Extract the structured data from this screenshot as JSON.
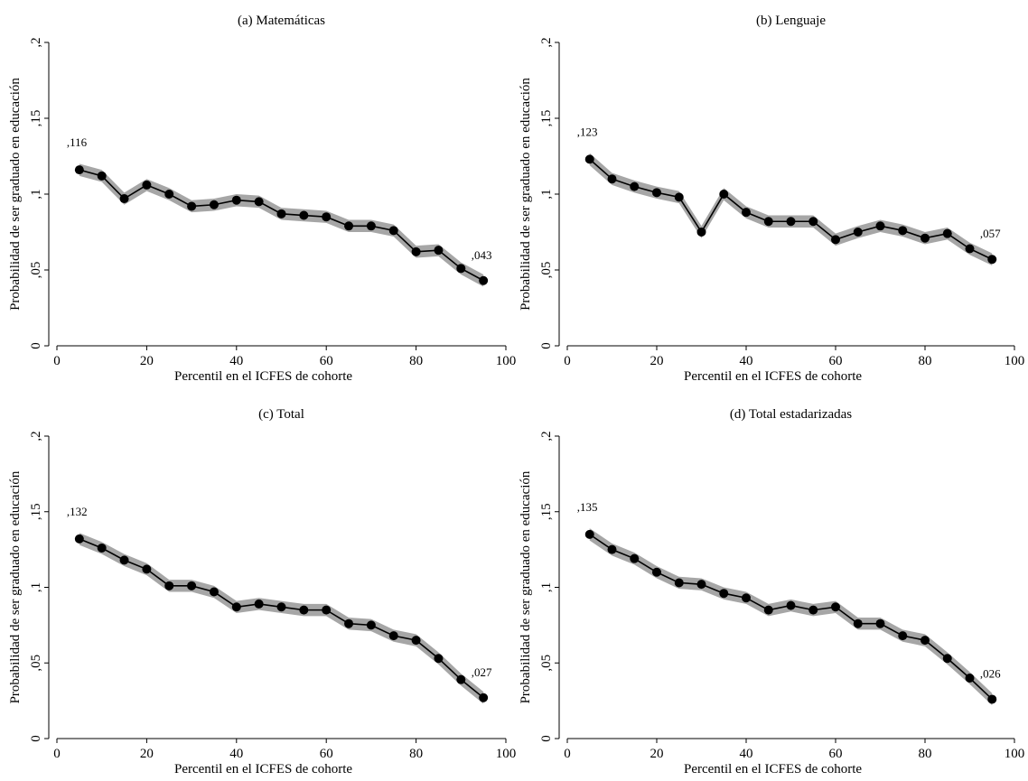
{
  "figure": {
    "panels": [
      {
        "title": "(a) Matemáticas"
      },
      {
        "title": "(b) Lenguaje"
      },
      {
        "title": "(c) Total"
      },
      {
        "title": "(d) Total estadarizadas"
      }
    ]
  },
  "colors": {
    "line": "#000000",
    "marker": "#000000",
    "ci_band": "#a6a6a6",
    "axis": "#000000"
  },
  "chart_data": [
    {
      "type": "line",
      "title": "(a) Matemáticas",
      "xlabel": "Percentil en el ICFES de cohorte",
      "ylabel": "Probabilidad de ser graduado en educación",
      "xlim": [
        0,
        100
      ],
      "ylim": [
        0,
        0.2
      ],
      "xticks": [
        0,
        20,
        40,
        60,
        80,
        100
      ],
      "xtick_labels": [
        "0",
        "20",
        "40",
        "60",
        "80",
        "100"
      ],
      "yticks": [
        0,
        0.05,
        0.1,
        0.15,
        0.2
      ],
      "ytick_labels": [
        "0",
        ",05",
        ",1",
        ",15",
        ",2"
      ],
      "grid": false,
      "legend": "none",
      "x": [
        5,
        10,
        15,
        20,
        25,
        30,
        35,
        40,
        45,
        50,
        55,
        60,
        65,
        70,
        75,
        80,
        85,
        90,
        95
      ],
      "y": [
        0.116,
        0.112,
        0.097,
        0.106,
        0.1,
        0.092,
        0.093,
        0.096,
        0.095,
        0.087,
        0.086,
        0.085,
        0.079,
        0.079,
        0.076,
        0.062,
        0.063,
        0.051,
        0.043
      ],
      "ci_halfwidth": 0.004,
      "annotations": [
        {
          "x": 5,
          "y": 0.116,
          "text": ",116",
          "pos": "left"
        },
        {
          "x": 95,
          "y": 0.043,
          "text": ",043",
          "pos": "above"
        }
      ]
    },
    {
      "type": "line",
      "title": "(b) Lenguaje",
      "xlabel": "Percentil en el ICFES de cohorte",
      "ylabel": "Probabilidad de ser graduado en educación",
      "xlim": [
        0,
        100
      ],
      "ylim": [
        0,
        0.2
      ],
      "xticks": [
        0,
        20,
        40,
        60,
        80,
        100
      ],
      "xtick_labels": [
        "0",
        "20",
        "40",
        "60",
        "80",
        "100"
      ],
      "yticks": [
        0,
        0.05,
        0.1,
        0.15,
        0.2
      ],
      "ytick_labels": [
        "0",
        ",05",
        ",1",
        ",15",
        ",2"
      ],
      "grid": false,
      "legend": "none",
      "x": [
        5,
        10,
        15,
        20,
        25,
        30,
        35,
        40,
        45,
        50,
        55,
        60,
        65,
        70,
        75,
        80,
        85,
        90,
        95
      ],
      "y": [
        0.123,
        0.11,
        0.105,
        0.101,
        0.098,
        0.075,
        0.1,
        0.088,
        0.082,
        0.082,
        0.082,
        0.07,
        0.075,
        0.079,
        0.076,
        0.071,
        0.074,
        0.064,
        0.057
      ],
      "ci_halfwidth": 0.004,
      "annotations": [
        {
          "x": 5,
          "y": 0.123,
          "text": ",123",
          "pos": "left"
        },
        {
          "x": 95,
          "y": 0.057,
          "text": ",057",
          "pos": "above"
        }
      ]
    },
    {
      "type": "line",
      "title": "(c) Total",
      "xlabel": "Percentil en el ICFES de cohorte",
      "ylabel": "Probabilidad de ser graduado en educación",
      "xlim": [
        0,
        100
      ],
      "ylim": [
        0,
        0.2
      ],
      "xticks": [
        0,
        20,
        40,
        60,
        80,
        100
      ],
      "xtick_labels": [
        "0",
        "20",
        "40",
        "60",
        "80",
        "100"
      ],
      "yticks": [
        0,
        0.05,
        0.1,
        0.15,
        0.2
      ],
      "ytick_labels": [
        "0",
        ",05",
        ",1",
        ",15",
        ",2"
      ],
      "grid": false,
      "legend": "none",
      "x": [
        5,
        10,
        15,
        20,
        25,
        30,
        35,
        40,
        45,
        50,
        55,
        60,
        65,
        70,
        75,
        80,
        85,
        90,
        95
      ],
      "y": [
        0.132,
        0.126,
        0.118,
        0.112,
        0.101,
        0.101,
        0.097,
        0.087,
        0.089,
        0.087,
        0.085,
        0.085,
        0.076,
        0.075,
        0.068,
        0.065,
        0.053,
        0.039,
        0.027
      ],
      "ci_halfwidth": 0.004,
      "annotations": [
        {
          "x": 5,
          "y": 0.132,
          "text": ",132",
          "pos": "left"
        },
        {
          "x": 95,
          "y": 0.027,
          "text": ",027",
          "pos": "above"
        }
      ]
    },
    {
      "type": "line",
      "title": "(d) Total estadarizadas",
      "xlabel": "Percentil en el ICFES de cohorte",
      "ylabel": "Probabilidad de ser graduado en educación",
      "xlim": [
        0,
        100
      ],
      "ylim": [
        0,
        0.2
      ],
      "xticks": [
        0,
        20,
        40,
        60,
        80,
        100
      ],
      "xtick_labels": [
        "0",
        "20",
        "40",
        "60",
        "80",
        "100"
      ],
      "yticks": [
        0,
        0.05,
        0.1,
        0.15,
        0.2
      ],
      "ytick_labels": [
        "0",
        ",05",
        ",1",
        ",15",
        ",2"
      ],
      "grid": false,
      "legend": "none",
      "x": [
        5,
        10,
        15,
        20,
        25,
        30,
        35,
        40,
        45,
        50,
        55,
        60,
        65,
        70,
        75,
        80,
        85,
        90,
        95
      ],
      "y": [
        0.135,
        0.125,
        0.119,
        0.11,
        0.103,
        0.102,
        0.096,
        0.093,
        0.085,
        0.088,
        0.085,
        0.087,
        0.076,
        0.076,
        0.068,
        0.065,
        0.053,
        0.04,
        0.026
      ],
      "ci_halfwidth": 0.004,
      "annotations": [
        {
          "x": 5,
          "y": 0.135,
          "text": ",135",
          "pos": "left"
        },
        {
          "x": 95,
          "y": 0.026,
          "text": ",026",
          "pos": "above"
        }
      ]
    }
  ]
}
